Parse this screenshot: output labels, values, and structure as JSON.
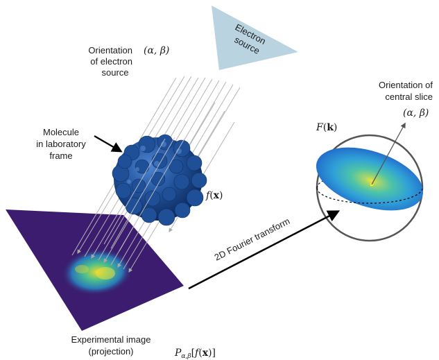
{
  "labels": {
    "electron_source": [
      "Electron",
      "source"
    ],
    "orientation_source": [
      "Orientation",
      "of electron",
      "source"
    ],
    "orientation_source_math": "(α, β)",
    "molecule": [
      "Molecule",
      "in laboratory",
      "frame"
    ],
    "f_x": {
      "fn": "f",
      "arg": "x"
    },
    "orientation_slice": [
      "Orientation of",
      "central slice"
    ],
    "orientation_slice_math": "(α, β)",
    "F_k": {
      "fn": "F",
      "arg": "k"
    },
    "fourier": "2D Fourier transform",
    "experimental_image": [
      "Experimental image",
      "(projection)"
    ],
    "projection_math": {
      "op": "P",
      "sub": "α,β",
      "fn": "f",
      "arg": "x"
    }
  },
  "colors": {
    "source_triangle": "#b9d4e0",
    "detector_plane": "#3b1c6e",
    "molecule": "#1f4f96",
    "beam": "#b5b5b5",
    "sphere_stroke": "#555555",
    "arrow": "#000000"
  }
}
